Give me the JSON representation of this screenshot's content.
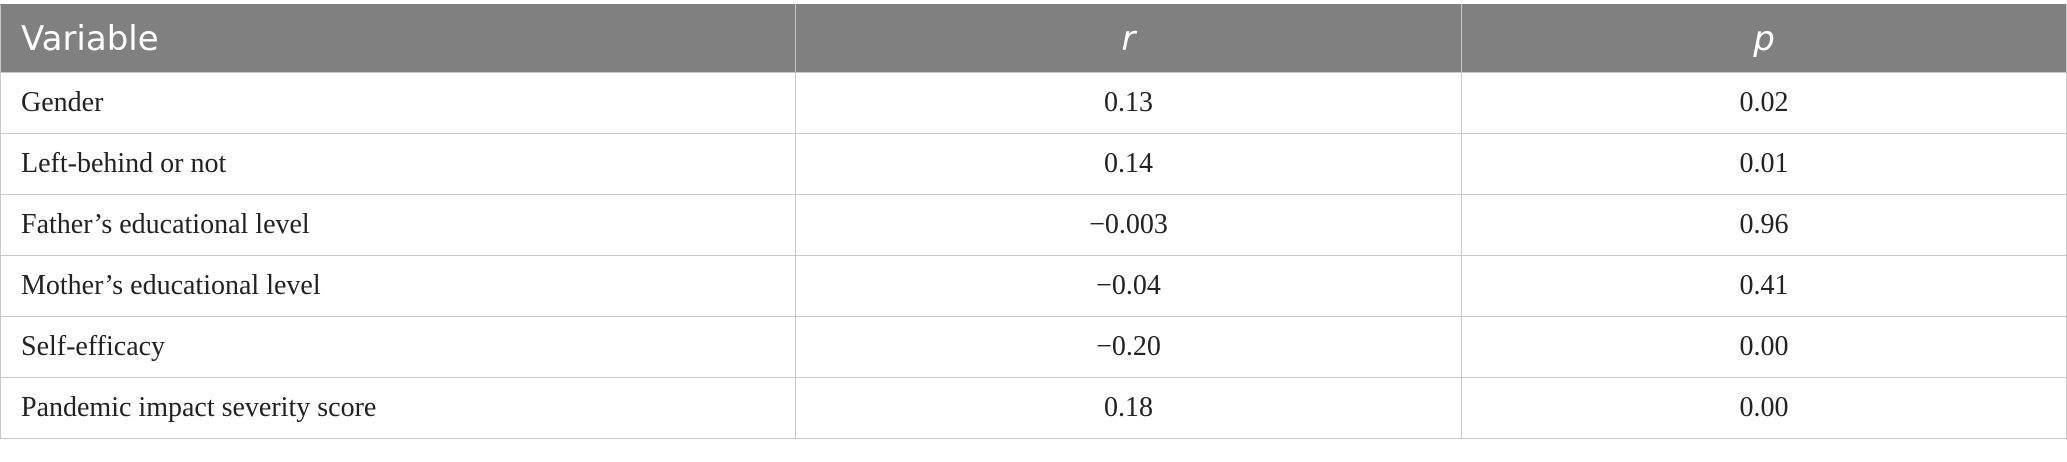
{
  "table": {
    "headers": [
      "Variable",
      "r",
      "p"
    ],
    "rows": [
      [
        "Gender",
        "0.13",
        "0.02"
      ],
      [
        "Left-behind or not",
        "0.14",
        "0.01"
      ],
      [
        "Father’s educational level",
        "−0.003",
        "0.96"
      ],
      [
        "Mother’s educational level",
        "−0.04",
        "0.41"
      ],
      [
        "Self-efficacy",
        "−0.20",
        "0.00"
      ],
      [
        "Pandemic impact severity score",
        "0.18",
        "0.00"
      ]
    ]
  },
  "colors": {
    "header_background": "#808080",
    "header_text": "#ffffff",
    "border": "#c8c8c8",
    "body_text": "#222222"
  }
}
